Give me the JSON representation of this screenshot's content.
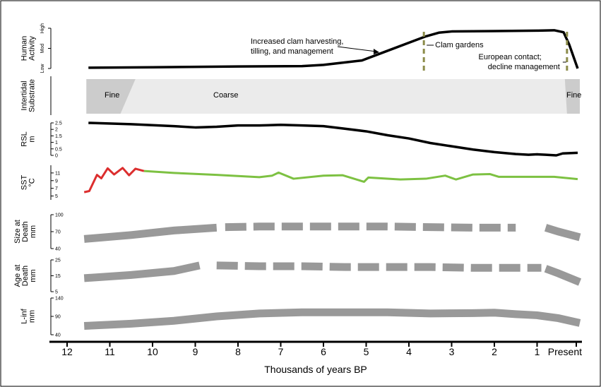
{
  "chart_data": {
    "type": "line",
    "x_unit": "Thousands of years BP",
    "xlabel": "Thousands of years BP",
    "x_ticks": [
      "12",
      "11",
      "10",
      "9",
      "8",
      "7",
      "6",
      "5",
      "4",
      "3",
      "2",
      "1",
      "Present"
    ],
    "x_tick_values": [
      12,
      11,
      10,
      9,
      8,
      7,
      6,
      5,
      4,
      3,
      2,
      1,
      0
    ],
    "xlim": [
      12.3,
      0
    ],
    "panels": [
      {
        "id": "human_activity",
        "label_lines": [
          "Human",
          "Activity"
        ],
        "tick_labels": [
          "Low",
          "Mod",
          "High"
        ],
        "ylim": [
          0,
          1
        ],
        "series": [
          {
            "color": "#000000",
            "x": [
              11.5,
              10,
              8,
              6.5,
              6,
              5.1,
              4.6,
              4,
              3.6,
              3.3,
              3,
              2,
              1,
              0.6,
              0.38,
              0.25,
              0.05
            ],
            "y": [
              0.02,
              0.03,
              0.05,
              0.06,
              0.09,
              0.2,
              0.4,
              0.64,
              0.8,
              0.89,
              0.92,
              0.93,
              0.94,
              0.95,
              0.9,
              0.6,
              0.0
            ]
          }
        ],
        "markers": [
          {
            "x": 3.65,
            "label": "Clam gardens"
          },
          {
            "x": 0.3,
            "label": "European contact; decline management"
          }
        ],
        "annotations": [
          {
            "lines": [
              "Increased clam harvesting,",
              "tilling, and management"
            ],
            "x": 4.7
          }
        ]
      },
      {
        "id": "intertidal_substrate",
        "label_lines": [
          "Intertidal",
          "Substrate"
        ],
        "type": "zones",
        "zones": [
          {
            "label": "Fine",
            "from": 11.55,
            "to": 10.4
          },
          {
            "label": "Coarse",
            "from": 10.4,
            "to": 0.0
          },
          {
            "label": "Fine",
            "from": 0.35,
            "to": 0.0
          }
        ]
      },
      {
        "id": "rsl",
        "label_lines": [
          "RSL",
          "m"
        ],
        "tick_labels": [
          "2.5",
          "2",
          "1.5",
          "1",
          "0.5",
          "0"
        ],
        "tick_values": [
          2.5,
          2,
          1.5,
          1,
          0.5,
          0
        ],
        "ylim": [
          0,
          2.5
        ],
        "series": [
          {
            "color": "#000000",
            "x": [
              11.5,
              10.5,
              9.5,
              9,
              8.5,
              8,
              7.5,
              7,
              6.5,
              6,
              5.5,
              5,
              4.5,
              4,
              3.5,
              3,
              2.5,
              2,
              1.5,
              1.2,
              1,
              0.8,
              0.55,
              0.4,
              0.05
            ],
            "y": [
              2.5,
              2.4,
              2.25,
              2.15,
              2.2,
              2.3,
              2.3,
              2.35,
              2.3,
              2.25,
              2.05,
              1.85,
              1.55,
              1.3,
              0.95,
              0.7,
              0.45,
              0.25,
              0.1,
              0.05,
              0.08,
              0.05,
              0.0,
              0.15,
              0.2
            ]
          }
        ]
      },
      {
        "id": "sst",
        "label_lines": [
          "SST",
          "°C"
        ],
        "tick_labels": [
          "11",
          "9",
          "7",
          "5"
        ],
        "tick_values": [
          11,
          9,
          7,
          5
        ],
        "ylim": [
          4,
          13
        ],
        "series": [
          {
            "color": "#dc2e2e",
            "x": [
              11.6,
              11.48,
              11.3,
              11.2,
              11.05,
              10.9,
              10.7,
              10.55,
              10.4,
              10.2
            ],
            "y": [
              6.0,
              6.3,
              10.5,
              9.6,
              12.2,
              10.6,
              12.3,
              10.4,
              12.1,
              11.5
            ]
          },
          {
            "color": "#7dc142",
            "x": [
              10.2,
              9.5,
              8.5,
              7.5,
              7.2,
              7.05,
              6.7,
              6,
              5.55,
              5.05,
              4.95,
              4.2,
              3.6,
              3.15,
              2.9,
              2.5,
              2.1,
              1.9,
              1.5,
              0.6,
              0.05
            ],
            "y": [
              11.5,
              11.0,
              10.5,
              9.9,
              10.3,
              11.1,
              9.5,
              10.3,
              10.4,
              8.7,
              9.8,
              9.3,
              9.5,
              10.3,
              9.3,
              10.6,
              10.7,
              10.0,
              10.0,
              10.0,
              9.4
            ]
          }
        ]
      },
      {
        "id": "size_at_death",
        "label_lines": [
          "Size at",
          "Death",
          "mm"
        ],
        "tick_labels": [
          "100",
          "70",
          "40"
        ],
        "tick_values": [
          100,
          70,
          40
        ],
        "ylim": [
          40,
          100
        ],
        "series": [
          {
            "style": "solid",
            "color": "#999999",
            "x": [
              11.6,
              10.5,
              9.5,
              8.5
            ],
            "y": [
              57,
              64,
              72,
              77
            ]
          },
          {
            "style": "dashed",
            "color": "#999999",
            "x": [
              8.3,
              7.5,
              6.5,
              5.5,
              4.5,
              3.5,
              2.5,
              1.5
            ],
            "y": [
              78,
              79,
              79,
              79,
              79,
              78,
              77,
              77
            ]
          },
          {
            "style": "solid",
            "color": "#999999",
            "x": [
              0.8,
              0.5,
              0.0
            ],
            "y": [
              77,
              70,
              60
            ]
          }
        ]
      },
      {
        "id": "age_at_death",
        "label_lines": [
          "Age at",
          "Death",
          "mm"
        ],
        "tick_labels": [
          "25",
          "15",
          "5"
        ],
        "tick_values": [
          25,
          15,
          5
        ],
        "ylim": [
          5,
          25
        ],
        "series": [
          {
            "style": "solid",
            "color": "#999999",
            "x": [
              11.6,
              10.5,
              9.5,
              8.9
            ],
            "y": [
              13.5,
              15.5,
              18,
              21.5
            ]
          },
          {
            "style": "dashed",
            "color": "#999999",
            "x": [
              8.5,
              7.5,
              6.5,
              5.5,
              4.5,
              3.5,
              2.5,
              1.5,
              0.9
            ],
            "y": [
              21.5,
              21,
              21,
              20.5,
              20.5,
              20.5,
              20,
              20,
              20
            ]
          },
          {
            "style": "solid",
            "color": "#999999",
            "x": [
              0.8,
              0.5,
              0.0
            ],
            "y": [
              19.5,
              16.5,
              11
            ]
          }
        ]
      },
      {
        "id": "l_inf",
        "label_lines": [
          "L-inf",
          "mm"
        ],
        "tick_labels": [
          "140",
          "90",
          "40"
        ],
        "tick_values": [
          140,
          90,
          40
        ],
        "ylim": [
          40,
          140
        ],
        "series": [
          {
            "style": "solid",
            "color": "#999999",
            "x": [
              11.6,
              10.5,
              9.5,
              8.5,
              7.5,
              6.5,
              5.5,
              4.5,
              3.5,
              2.5,
              2,
              1.5,
              1,
              0.5,
              0.0
            ],
            "y": [
              64,
              70,
              78,
              90,
              98,
              101,
              101,
              101,
              98,
              99,
              100,
              96,
              93,
              85,
              72
            ]
          }
        ]
      }
    ]
  }
}
